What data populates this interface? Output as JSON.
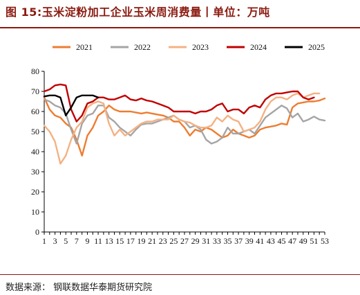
{
  "header": {
    "title": "图 15:玉米淀粉加工企业玉米周消费量丨单位：万吨"
  },
  "footer": {
    "source": "数据来源：  钢联数据华泰期货研究院"
  },
  "colors": {
    "brand": "#8b1a10"
  },
  "chart_data": {
    "type": "line",
    "title": "",
    "xlabel": "",
    "ylabel": "",
    "x": [
      1,
      2,
      3,
      4,
      5,
      6,
      7,
      8,
      9,
      10,
      11,
      12,
      13,
      14,
      15,
      16,
      17,
      18,
      19,
      20,
      21,
      22,
      23,
      24,
      25,
      26,
      27,
      28,
      29,
      30,
      31,
      32,
      33,
      34,
      35,
      36,
      37,
      38,
      39,
      40,
      41,
      42,
      43,
      44,
      45,
      46,
      47,
      48,
      49,
      50,
      51,
      52,
      53
    ],
    "x_tick_labels": [
      "1",
      "3",
      "5",
      "7",
      "9",
      "11",
      "13",
      "15",
      "17",
      "19",
      "21",
      "23",
      "25",
      "27",
      "29",
      "31",
      "33",
      "35",
      "37",
      "39",
      "41",
      "43",
      "45",
      "47",
      "49",
      "51",
      "53"
    ],
    "xlim": [
      1,
      53
    ],
    "ylim": [
      0,
      80
    ],
    "y_ticks": [
      0,
      10,
      20,
      30,
      40,
      50,
      60,
      70,
      80
    ],
    "grid": false,
    "legend_position": "top",
    "series": [
      {
        "name": "2021",
        "color": "#ed7d31",
        "values": [
          67,
          61,
          58,
          57,
          54,
          52,
          46,
          38,
          48,
          52,
          58,
          60,
          63,
          61,
          60,
          60,
          60,
          59.5,
          59,
          59.5,
          59,
          58.5,
          58,
          57,
          55,
          55,
          52,
          48,
          51,
          50,
          52,
          51,
          49,
          47,
          48,
          51,
          49,
          48,
          47,
          48,
          51,
          52,
          52.5,
          53,
          54,
          53.5,
          62,
          64,
          64.5,
          65,
          65,
          65.5,
          66.5
        ]
      },
      {
        "name": "2022",
        "color": "#a5a5a5",
        "values": [
          66,
          65,
          63,
          62,
          59,
          51,
          44,
          54,
          58,
          59,
          63,
          63,
          57,
          55,
          52,
          50,
          48,
          51,
          53.5,
          54,
          54,
          55,
          56,
          57,
          58,
          56,
          55,
          52,
          53,
          51,
          46,
          44,
          45,
          47,
          52,
          49,
          49,
          50,
          51,
          49,
          53,
          57,
          59,
          61,
          63,
          61.5,
          57,
          59,
          55,
          56,
          57.5,
          56,
          55.5
        ]
      },
      {
        "name": "2023",
        "color": "#f4b183",
        "values": [
          53,
          50,
          45,
          34,
          38,
          46,
          52,
          55,
          62,
          64,
          65,
          64,
          54,
          48,
          51,
          48,
          50,
          52,
          54,
          55,
          55,
          56,
          56,
          56,
          58,
          56,
          55,
          54.5,
          53,
          52,
          52,
          53,
          57,
          55,
          58,
          56,
          55,
          50,
          51,
          52,
          55,
          61,
          65,
          67,
          67,
          66,
          68,
          69,
          67,
          68,
          69,
          69,
          null
        ]
      },
      {
        "name": "2024",
        "color": "#c00000",
        "values": [
          70,
          71,
          73,
          73.5,
          73,
          61,
          55,
          58,
          64,
          65,
          67,
          67,
          66,
          66,
          67,
          68,
          66,
          65.5,
          66.5,
          65.5,
          65,
          64,
          63,
          62,
          60,
          60,
          60,
          60,
          59,
          60,
          60,
          61,
          63,
          64,
          60,
          61,
          61,
          59,
          62,
          63,
          62,
          66,
          68,
          69,
          69,
          69.5,
          70,
          70,
          67,
          66,
          67,
          null,
          null
        ]
      },
      {
        "name": "2025",
        "color": "#000000",
        "values": [
          67.5,
          68,
          68,
          67,
          58,
          62,
          67,
          68,
          68,
          68,
          67,
          null,
          null,
          null,
          null,
          null,
          null,
          null,
          null,
          null,
          null,
          null,
          null,
          null,
          null,
          null,
          null,
          null,
          null,
          null,
          null,
          null,
          null,
          null,
          null,
          null,
          null,
          null,
          null,
          null,
          null,
          null,
          null,
          null,
          null,
          null,
          null,
          null,
          null,
          null,
          null,
          null,
          null
        ]
      }
    ]
  }
}
